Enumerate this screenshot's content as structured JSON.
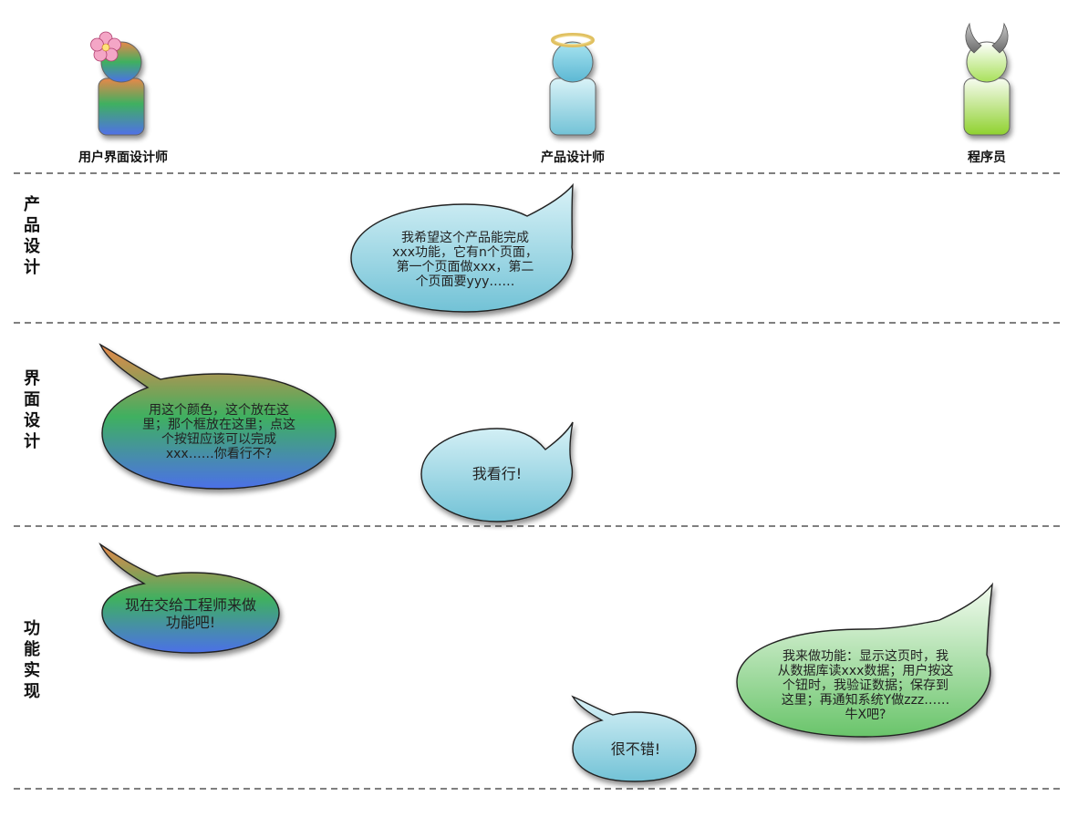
{
  "roles": [
    {
      "id": "ui-designer",
      "label": "用户界面设计师"
    },
    {
      "id": "product-designer",
      "label": "产品设计师"
    },
    {
      "id": "programmer",
      "label": "程序员"
    }
  ],
  "phases": [
    {
      "id": "product-design",
      "label": "产品设计"
    },
    {
      "id": "ui-design",
      "label": "界面设计"
    },
    {
      "id": "implementation",
      "label": "功能实现"
    }
  ],
  "bubbles": {
    "pd_1": "我希望这个产品能完成\nxxx功能，它有n个页面，\n第一个页面做xxx，第二\n个页面要yyy……",
    "ui_1": "用这个颜色，这个放在这\n里；那个框放在这里；点这\n个按钮应该可以完成\nxxx……你看行不?",
    "ui_2": "我看行!",
    "impl_1": "现在交给工程师来做\n功能吧!",
    "impl_2": "我来做功能：显示这页时，我\n从数据库读xxx数据；用户按这\n个钮时，我验证数据；保存到\n这里；再通知系统Y做zzz……\n牛X吧?",
    "impl_3": "很不错!"
  },
  "colors": {
    "divider": "#555555",
    "product_bubble_light": "#d6f1f6",
    "product_bubble_dark": "#7ec9d9",
    "programmer_light": "#f2fbe8",
    "programmer_dark": "#8cd36a",
    "ui_orange": "#e08a3c",
    "ui_green": "#3fae5a",
    "ui_blue": "#4a78e0"
  }
}
